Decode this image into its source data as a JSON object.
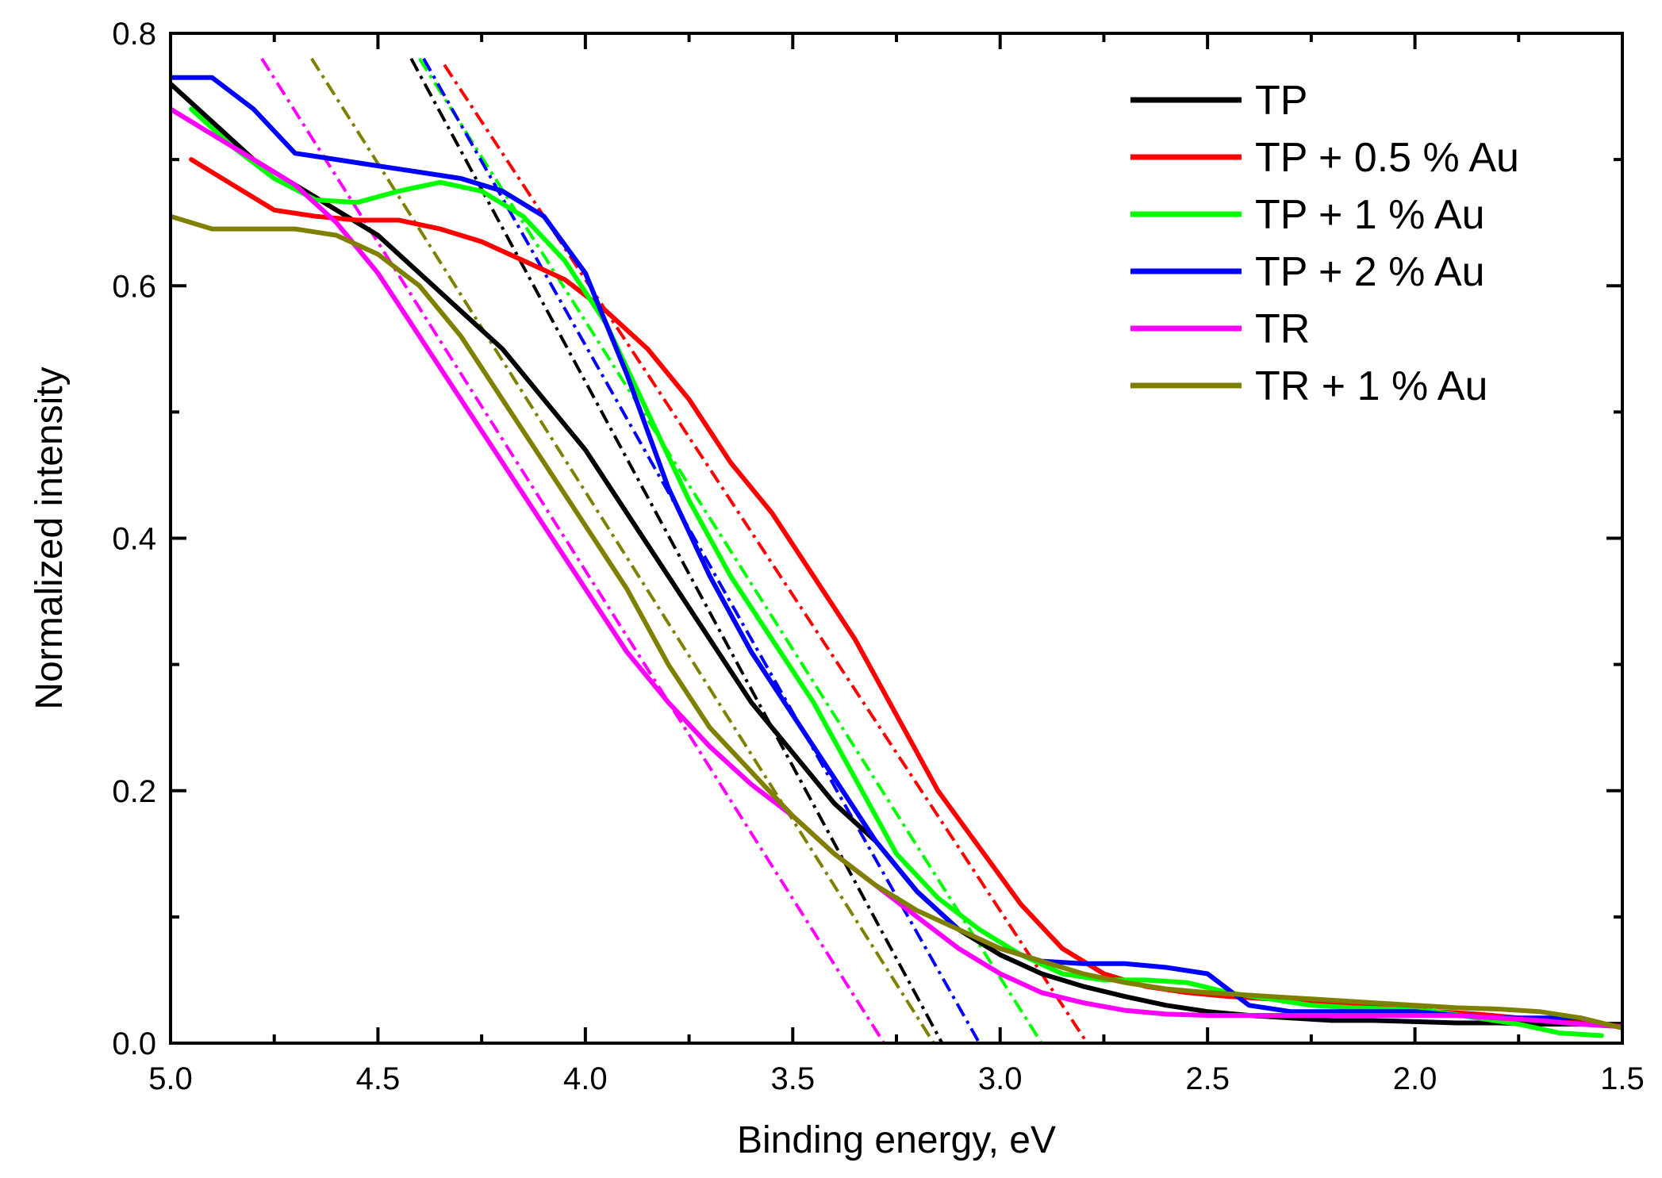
{
  "chart_data": {
    "type": "line",
    "title": "",
    "xlabel": "Binding energy, eV",
    "ylabel": "Normalized intensity",
    "xlim": [
      5.0,
      1.5
    ],
    "ylim": [
      0.0,
      0.8
    ],
    "x_reversed": true,
    "grid": false,
    "legend_position": "top-right",
    "x_ticks": [
      5.0,
      4.5,
      4.0,
      3.5,
      3.0,
      2.5,
      2.0,
      1.5
    ],
    "x_tick_labels": [
      "5.0",
      "4.5",
      "4.0",
      "3.5",
      "3.0",
      "2.5",
      "2.0",
      "1.5"
    ],
    "y_ticks": [
      0.0,
      0.2,
      0.4,
      0.6,
      0.8
    ],
    "y_tick_labels": [
      "0.0",
      "0.2",
      "0.4",
      "0.6",
      "0.8"
    ],
    "series": [
      {
        "name": "TP",
        "color": "#000000",
        "x": [
          5.0,
          4.9,
          4.8,
          4.7,
          4.6,
          4.5,
          4.4,
          4.3,
          4.2,
          4.1,
          4.0,
          3.9,
          3.8,
          3.7,
          3.6,
          3.5,
          3.4,
          3.3,
          3.2,
          3.1,
          3.0,
          2.9,
          2.8,
          2.7,
          2.6,
          2.5,
          2.4,
          2.3,
          2.2,
          2.1,
          2.0,
          1.9,
          1.8,
          1.7,
          1.6,
          1.5
        ],
        "y": [
          0.76,
          0.73,
          0.7,
          0.68,
          0.66,
          0.64,
          0.61,
          0.58,
          0.55,
          0.51,
          0.47,
          0.42,
          0.37,
          0.32,
          0.27,
          0.23,
          0.19,
          0.16,
          0.12,
          0.09,
          0.07,
          0.055,
          0.045,
          0.037,
          0.03,
          0.025,
          0.022,
          0.02,
          0.018,
          0.018,
          0.017,
          0.016,
          0.016,
          0.015,
          0.015,
          0.015
        ]
      },
      {
        "name": "TP + 0.5 % Au",
        "color": "#ff0000",
        "x": [
          4.95,
          4.85,
          4.75,
          4.65,
          4.55,
          4.45,
          4.35,
          4.25,
          4.15,
          4.05,
          3.95,
          3.85,
          3.75,
          3.65,
          3.55,
          3.45,
          3.35,
          3.25,
          3.15,
          3.05,
          2.95,
          2.85,
          2.75,
          2.65,
          2.55,
          2.45,
          2.35,
          2.25,
          2.15,
          2.05,
          1.95,
          1.85,
          1.75,
          1.65,
          1.55,
          1.5
        ],
        "y": [
          0.7,
          0.68,
          0.66,
          0.655,
          0.652,
          0.652,
          0.645,
          0.635,
          0.62,
          0.605,
          0.58,
          0.55,
          0.51,
          0.46,
          0.42,
          0.37,
          0.32,
          0.26,
          0.2,
          0.155,
          0.11,
          0.075,
          0.055,
          0.045,
          0.04,
          0.037,
          0.035,
          0.033,
          0.03,
          0.028,
          0.025,
          0.023,
          0.02,
          0.018,
          0.015,
          0.013
        ]
      },
      {
        "name": "TP + 1 % Au",
        "color": "#00ff00",
        "x": [
          4.95,
          4.85,
          4.75,
          4.65,
          4.55,
          4.45,
          4.35,
          4.25,
          4.15,
          4.05,
          3.95,
          3.85,
          3.75,
          3.65,
          3.55,
          3.45,
          3.35,
          3.25,
          3.15,
          3.05,
          2.95,
          2.85,
          2.75,
          2.65,
          2.55,
          2.45,
          2.35,
          2.25,
          2.15,
          2.05,
          1.95,
          1.85,
          1.75,
          1.65,
          1.55
        ],
        "y": [
          0.74,
          0.71,
          0.685,
          0.668,
          0.666,
          0.675,
          0.682,
          0.675,
          0.655,
          0.62,
          0.57,
          0.5,
          0.43,
          0.37,
          0.32,
          0.27,
          0.21,
          0.15,
          0.115,
          0.09,
          0.07,
          0.055,
          0.05,
          0.05,
          0.048,
          0.04,
          0.035,
          0.03,
          0.028,
          0.027,
          0.025,
          0.02,
          0.015,
          0.008,
          0.006
        ]
      },
      {
        "name": "TP + 2 % Au",
        "color": "#0000ff",
        "x": [
          5.0,
          4.9,
          4.8,
          4.7,
          4.6,
          4.5,
          4.4,
          4.3,
          4.2,
          4.1,
          4.0,
          3.9,
          3.8,
          3.7,
          3.6,
          3.5,
          3.4,
          3.3,
          3.2,
          3.1,
          3.0,
          2.9,
          2.8,
          2.7,
          2.6,
          2.5,
          2.4,
          2.3,
          2.2,
          2.1,
          2.0,
          1.9,
          1.8,
          1.7,
          1.6
        ],
        "y": [
          0.765,
          0.765,
          0.74,
          0.705,
          0.7,
          0.695,
          0.69,
          0.685,
          0.675,
          0.655,
          0.61,
          0.53,
          0.44,
          0.37,
          0.31,
          0.26,
          0.21,
          0.16,
          0.12,
          0.09,
          0.075,
          0.065,
          0.063,
          0.063,
          0.06,
          0.055,
          0.03,
          0.025,
          0.025,
          0.025,
          0.025,
          0.022,
          0.02,
          0.02,
          0.02
        ]
      },
      {
        "name": "TR",
        "color": "#ff00ff",
        "x": [
          5.0,
          4.9,
          4.8,
          4.7,
          4.6,
          4.5,
          4.4,
          4.3,
          4.2,
          4.1,
          4.0,
          3.9,
          3.8,
          3.7,
          3.6,
          3.5,
          3.4,
          3.3,
          3.2,
          3.1,
          3.0,
          2.9,
          2.8,
          2.7,
          2.6,
          2.5,
          2.4,
          2.3,
          2.2,
          2.1,
          2.0,
          1.9,
          1.8,
          1.7,
          1.6,
          1.5
        ],
        "y": [
          0.74,
          0.72,
          0.7,
          0.68,
          0.65,
          0.61,
          0.56,
          0.51,
          0.46,
          0.41,
          0.36,
          0.31,
          0.27,
          0.235,
          0.205,
          0.18,
          0.15,
          0.125,
          0.1,
          0.075,
          0.055,
          0.04,
          0.032,
          0.026,
          0.023,
          0.022,
          0.022,
          0.022,
          0.022,
          0.022,
          0.022,
          0.022,
          0.02,
          0.018,
          0.015,
          0.013
        ]
      },
      {
        "name": "TR + 1 % Au",
        "color": "#808000",
        "x": [
          5.0,
          4.9,
          4.8,
          4.7,
          4.6,
          4.5,
          4.4,
          4.3,
          4.2,
          4.1,
          4.0,
          3.9,
          3.8,
          3.7,
          3.6,
          3.5,
          3.4,
          3.3,
          3.2,
          3.1,
          3.0,
          2.9,
          2.8,
          2.7,
          2.6,
          2.5,
          2.4,
          2.3,
          2.2,
          2.1,
          2.0,
          1.9,
          1.8,
          1.7,
          1.6,
          1.5
        ],
        "y": [
          0.655,
          0.645,
          0.645,
          0.645,
          0.64,
          0.625,
          0.6,
          0.56,
          0.51,
          0.46,
          0.41,
          0.36,
          0.3,
          0.25,
          0.215,
          0.18,
          0.15,
          0.125,
          0.105,
          0.09,
          0.075,
          0.065,
          0.055,
          0.048,
          0.043,
          0.04,
          0.038,
          0.036,
          0.034,
          0.032,
          0.03,
          0.028,
          0.027,
          0.025,
          0.02,
          0.012
        ]
      }
    ],
    "fit_lines": [
      {
        "name": "TP fit",
        "color": "#000000",
        "x": [
          4.42,
          3.14
        ],
        "y": [
          0.78,
          0.0
        ]
      },
      {
        "name": "TP + 0.5 % Au fit",
        "color": "#ff0000",
        "x": [
          4.34,
          2.79
        ],
        "y": [
          0.775,
          0.0
        ]
      },
      {
        "name": "TP + 1 % Au fit",
        "color": "#00ff00",
        "x": [
          4.4,
          2.9
        ],
        "y": [
          0.78,
          0.0
        ]
      },
      {
        "name": "TP + 2 % Au fit",
        "color": "#0000ff",
        "x": [
          4.39,
          3.05
        ],
        "y": [
          0.78,
          0.0
        ]
      },
      {
        "name": "TR fit",
        "color": "#ff00ff",
        "x": [
          4.78,
          3.28
        ],
        "y": [
          0.78,
          0.0
        ]
      },
      {
        "name": "TR + 1 % Au fit",
        "color": "#808000",
        "x": [
          4.66,
          3.16
        ],
        "y": [
          0.78,
          0.0
        ]
      }
    ]
  }
}
